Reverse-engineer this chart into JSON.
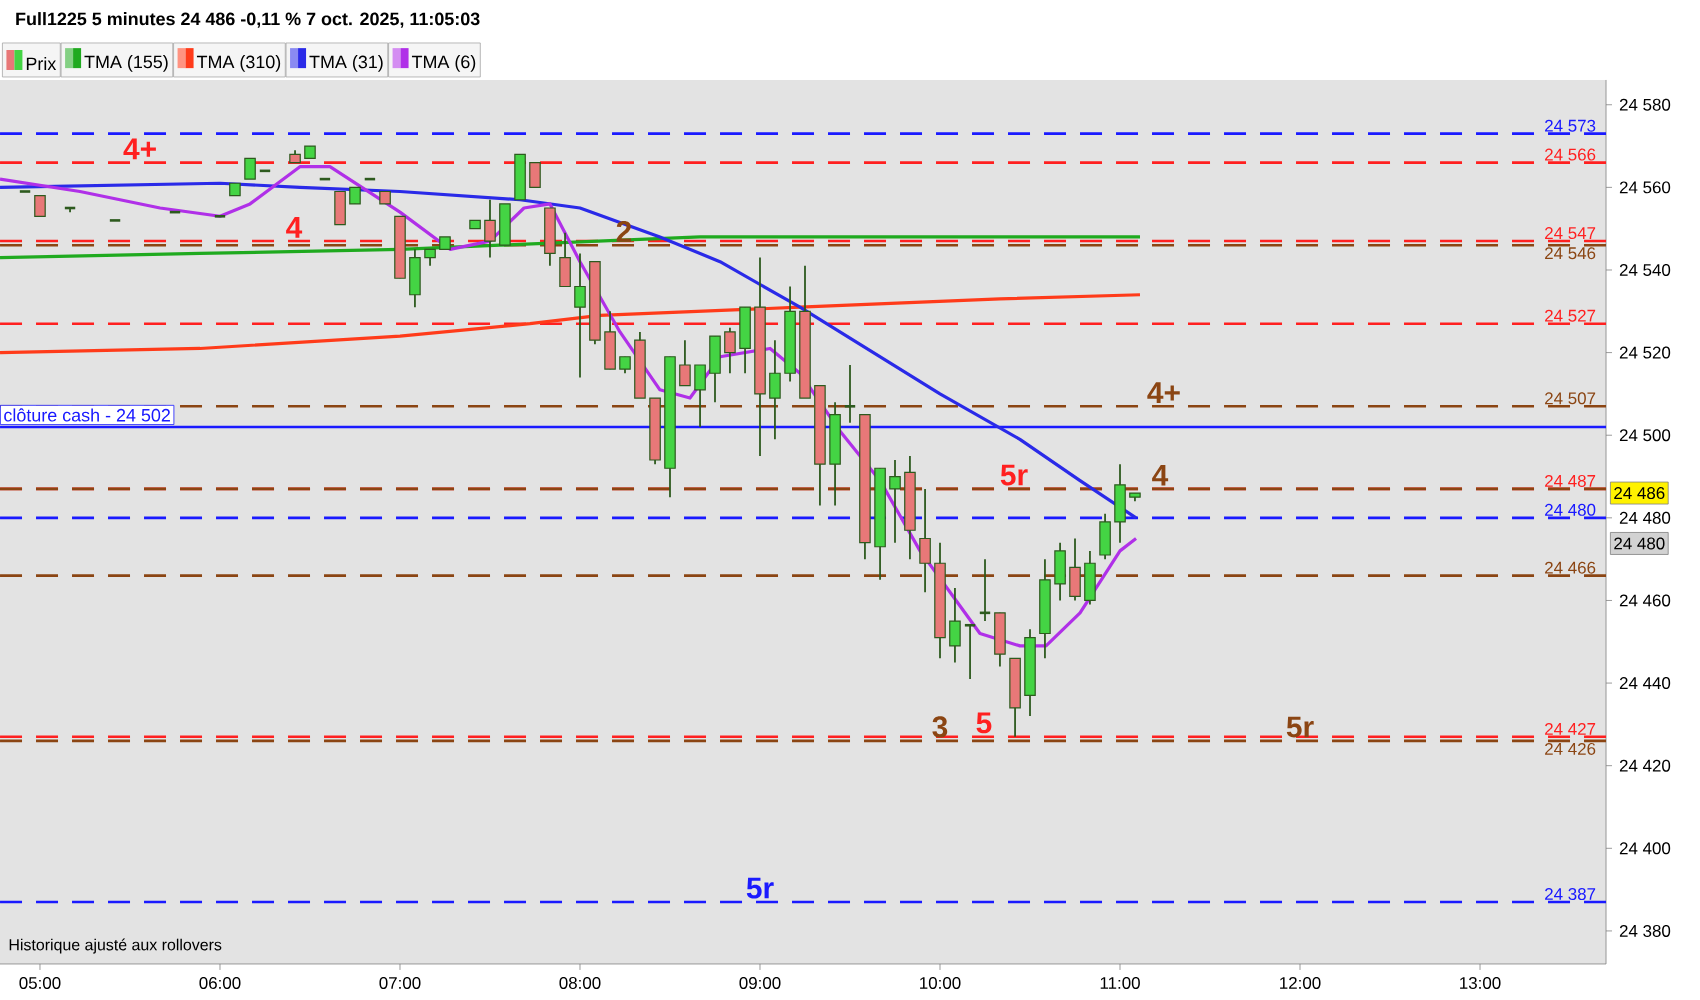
{
  "chart_data": {
    "type": "candlestick",
    "title": "Full1225 5 minutes 24 486 -0,11 % 7 oct. 2025, 11:05:03",
    "legend": "top left",
    "xlim": [
      4.778,
      13.7
    ],
    "ylim": [
      24372,
      24586
    ],
    "xticks": [
      {
        "value": 5,
        "label": "05:00"
      },
      {
        "value": 6,
        "label": "06:00"
      },
      {
        "value": 7,
        "label": "07:00"
      },
      {
        "value": 8,
        "label": "08:00"
      },
      {
        "value": 9,
        "label": "09:00"
      },
      {
        "value": 10,
        "label": "10:00"
      },
      {
        "value": 11,
        "label": "11:00"
      },
      {
        "value": 12,
        "label": "12:00"
      },
      {
        "value": 13,
        "label": "13:00"
      }
    ],
    "yticks": [
      {
        "value": 24380,
        "label": "24 380"
      },
      {
        "value": 24400,
        "label": "24 400"
      },
      {
        "value": 24420,
        "label": "24 420"
      },
      {
        "value": 24440,
        "label": "24 440"
      },
      {
        "value": 24460,
        "label": "24 460"
      },
      {
        "value": 24480,
        "label": "24 480"
      },
      {
        "value": 24500,
        "label": "24 500"
      },
      {
        "value": 24520,
        "label": "24 520"
      },
      {
        "value": 24540,
        "label": "24 540"
      },
      {
        "value": 24560,
        "label": "24 560"
      },
      {
        "value": 24580,
        "label": "24 580"
      }
    ],
    "series": [
      {
        "name": "Prix",
        "x": [
          4.917,
          5,
          5.167,
          5.417,
          5.75,
          6,
          6.083,
          6.167,
          6.25,
          6.417,
          6.5,
          6.583,
          6.667,
          6.75,
          6.833,
          6.917,
          7,
          7.083,
          7.167,
          7.25,
          7.417,
          7.5,
          7.583,
          7.667,
          7.75,
          7.833,
          7.917,
          8,
          8.083,
          8.167,
          8.25,
          8.333,
          8.417,
          8.5,
          8.583,
          8.667,
          8.75,
          8.833,
          8.917,
          9,
          9.083,
          9.167,
          9.25,
          9.333,
          9.417,
          9.5,
          9.583,
          9.667,
          9.75,
          9.833,
          9.917,
          10,
          10.083,
          10.167,
          10.25,
          10.333,
          10.417,
          10.5,
          10.583,
          10.667,
          10.75,
          10.833,
          10.917,
          11,
          11.083
        ],
        "ohlc": [
          [
            24559,
            24559,
            24559,
            24559
          ],
          [
            24558,
            24558,
            24553,
            24553
          ],
          [
            24555,
            24555,
            24554,
            24555
          ],
          [
            24552,
            24552,
            24552,
            24552
          ],
          [
            24554,
            24554,
            24554,
            24554
          ],
          [
            24553,
            24553,
            24553,
            24553
          ],
          [
            24558,
            24561,
            24558,
            24561
          ],
          [
            24562,
            24567,
            24562,
            24567
          ],
          [
            24564,
            24564,
            24564,
            24564
          ],
          [
            24568,
            24569,
            24566,
            24566
          ],
          [
            24567,
            24570,
            24567,
            24570
          ],
          [
            24562,
            24562,
            24562,
            24562
          ],
          [
            24559,
            24559,
            24551,
            24551
          ],
          [
            24556,
            24560,
            24556,
            24560
          ],
          [
            24562,
            24562,
            24562,
            24562
          ],
          [
            24559,
            24559,
            24556,
            24556
          ],
          [
            24553,
            24553,
            24538,
            24538
          ],
          [
            24534,
            24545,
            24531,
            24543
          ],
          [
            24543,
            24545,
            24541,
            24545
          ],
          [
            24545,
            24548,
            24545,
            24548
          ],
          [
            24550,
            24552,
            24550,
            24552
          ],
          [
            24552,
            24557,
            24543,
            24547
          ],
          [
            24546,
            24556,
            24546,
            24556
          ],
          [
            24557,
            24568,
            24557,
            24568
          ],
          [
            24566,
            24566,
            24560,
            24560
          ],
          [
            24555,
            24555,
            24541,
            24544
          ],
          [
            24543,
            24549,
            24536,
            24536
          ],
          [
            24531,
            24544,
            24514,
            24536
          ],
          [
            24542,
            24542,
            24522,
            24523
          ],
          [
            24525,
            24530,
            24516,
            24516
          ],
          [
            24516,
            24519,
            24515,
            24519
          ],
          [
            24523,
            24525,
            24509,
            24509
          ],
          [
            24509,
            24509,
            24493,
            24494
          ],
          [
            24492,
            24519,
            24485,
            24519
          ],
          [
            24517,
            24523,
            24512,
            24512
          ],
          [
            24511,
            24517,
            24502,
            24517
          ],
          [
            24515,
            24524,
            24508,
            24524
          ],
          [
            24525,
            24526,
            24515,
            24520
          ],
          [
            24521,
            24531,
            24515,
            24531
          ],
          [
            24531,
            24543,
            24495,
            24510
          ],
          [
            24509,
            24523,
            24499,
            24515
          ],
          [
            24515,
            24536,
            24513,
            24530
          ],
          [
            24530,
            24541,
            24509,
            24509
          ],
          [
            24512,
            24512,
            24483,
            24493
          ],
          [
            24493,
            24508,
            24483,
            24505
          ],
          [
            24507,
            24517,
            24503,
            24507
          ],
          [
            24505,
            24505,
            24470,
            24474
          ],
          [
            24473,
            24492,
            24465,
            24492
          ],
          [
            24487,
            24494,
            24474,
            24490
          ],
          [
            24491,
            24495,
            24470,
            24477
          ],
          [
            24475,
            24487,
            24462,
            24469
          ],
          [
            24469,
            24474,
            24446,
            24451
          ],
          [
            24449,
            24463,
            24445,
            24455
          ],
          [
            24454,
            24454,
            24441,
            24454
          ],
          [
            24457,
            24470,
            24455,
            24457
          ],
          [
            24457,
            24457,
            24444,
            24447
          ],
          [
            24446,
            24446,
            24427,
            24434
          ],
          [
            24437,
            24453,
            24432,
            24451
          ],
          [
            24452,
            24470,
            24446,
            24465
          ],
          [
            24464,
            24474,
            24460,
            24472
          ],
          [
            24468,
            24475,
            24460,
            24461
          ],
          [
            24460,
            24472,
            24459,
            24469
          ],
          [
            24471,
            24481,
            24470,
            24479
          ],
          [
            24479,
            24493,
            24474,
            24488
          ],
          [
            24485,
            24486,
            24484,
            24486
          ]
        ]
      },
      {
        "name": "TMA (155)",
        "type": "line",
        "color": "#1faa1f",
        "x": [
          4.778,
          5.889,
          7.0,
          7.556,
          8.667,
          9.778,
          11.111
        ],
        "values": [
          24543,
          24544,
          24545,
          24546,
          24548,
          24548,
          24548
        ]
      },
      {
        "name": "TMA (310)",
        "type": "line",
        "color": "#ff3b1a",
        "x": [
          4.778,
          5.889,
          7.0,
          7.722,
          8.111,
          9.222,
          10.333,
          11.111
        ],
        "values": [
          24520,
          24521,
          24524,
          24527,
          24529,
          24531,
          24533,
          24534
        ]
      },
      {
        "name": "TMA (31)",
        "type": "line",
        "color": "#2a2ae8",
        "x": [
          4.778,
          6.0,
          6.444,
          7.0,
          7.667,
          8.0,
          8.444,
          8.778,
          9.222,
          9.556,
          10.0,
          10.444,
          10.778,
          11.089
        ],
        "values": [
          24560,
          24561,
          24560,
          24559,
          24557,
          24555,
          24548,
          24542,
          24531,
          24522,
          24510,
          24499,
          24489,
          24480
        ]
      },
      {
        "name": "TMA (6)",
        "type": "line",
        "color": "#b030e8",
        "x": [
          4.778,
          5.222,
          5.667,
          6.0,
          6.167,
          6.444,
          6.611,
          7.0,
          7.278,
          7.5,
          7.689,
          7.833,
          8.0,
          8.222,
          8.444,
          8.611,
          8.778,
          9.056,
          9.222,
          9.444,
          9.667,
          9.889,
          10.056,
          10.222,
          10.444,
          10.589,
          10.778,
          11.0,
          11.089
        ],
        "values": [
          24562,
          24559,
          24555,
          24553,
          24556,
          24565,
          24565,
          24554,
          24545,
          24547,
          24555,
          24556,
          24542,
          24525,
          24511,
          24509,
          24519,
          24521,
          24515,
          24501,
          24489,
          24472,
          24462,
          24452,
          24449,
          24449,
          24457,
          24472,
          24475
        ]
      }
    ],
    "ref_lines": [
      {
        "axis": "y",
        "value": 24573,
        "label": "24 573",
        "color": "#1a1aff",
        "line_style": "dashed"
      },
      {
        "axis": "y",
        "value": 24566,
        "label": "24 566",
        "color": "#ff2020",
        "line_style": "dashed"
      },
      {
        "axis": "y",
        "value": 24547,
        "label": "24 547",
        "color": "#ff2020",
        "line_style": "dashed"
      },
      {
        "axis": "y",
        "value": 24546,
        "label": "24 546",
        "color": "#8b4513",
        "line_style": "dashed"
      },
      {
        "axis": "y",
        "value": 24527,
        "label": "24 527",
        "color": "#ff2020",
        "line_style": "dashed"
      },
      {
        "axis": "y",
        "value": 24507,
        "label": "24 507",
        "color": "#8b4513",
        "line_style": "dashed"
      },
      {
        "axis": "y",
        "value": 24502,
        "label": "clôture cash - 24 502",
        "color": "#1a1aff",
        "line_style": "solid"
      },
      {
        "axis": "y",
        "value": 24487,
        "label": "24 487",
        "color": "#ff2020",
        "line_style": "dashed"
      },
      {
        "axis": "y",
        "value": 24487,
        "color": "#8b4513",
        "line_style": "dashed"
      },
      {
        "axis": "y",
        "value": 24480,
        "label": "24 480",
        "color": "#1a1aff",
        "line_style": "dashed"
      },
      {
        "axis": "y",
        "value": 24466,
        "label": "24 466",
        "color": "#8b4513",
        "line_style": "dashed"
      },
      {
        "axis": "y",
        "value": 24427,
        "label": "24 427",
        "color": "#ff2020",
        "line_style": "dashed"
      },
      {
        "axis": "y",
        "value": 24426,
        "label": "24 426",
        "color": "#8b4513",
        "line_style": "dashed"
      },
      {
        "axis": "y",
        "value": 24387,
        "label": "24 387",
        "color": "#1a1aff",
        "line_style": "dashed"
      }
    ],
    "annotations": [
      {
        "text": "4+",
        "x": 5.556,
        "y": 24566
      },
      {
        "text": "4",
        "x": 6.411,
        "y": 24547
      },
      {
        "text": "2",
        "x": 8.244,
        "y": 24546
      },
      {
        "text": "4+",
        "x": 11.244,
        "y": 24507
      },
      {
        "text": "5r",
        "x": 10.411,
        "y": 24487
      },
      {
        "text": "4",
        "x": 11.222,
        "y": 24487
      },
      {
        "text": "3",
        "x": 10.0,
        "y": 24426
      },
      {
        "text": "5",
        "x": 10.244,
        "y": 24427
      },
      {
        "text": "5r",
        "x": 12.0,
        "y": 24426
      },
      {
        "text": "5r",
        "x": 9.0,
        "y": 24387
      },
      {
        "text": "24 486",
        "y": 24486
      },
      "24 480",
      {
        "text": "Historique ajusté aux rollovers"
      }
    ]
  }
}
